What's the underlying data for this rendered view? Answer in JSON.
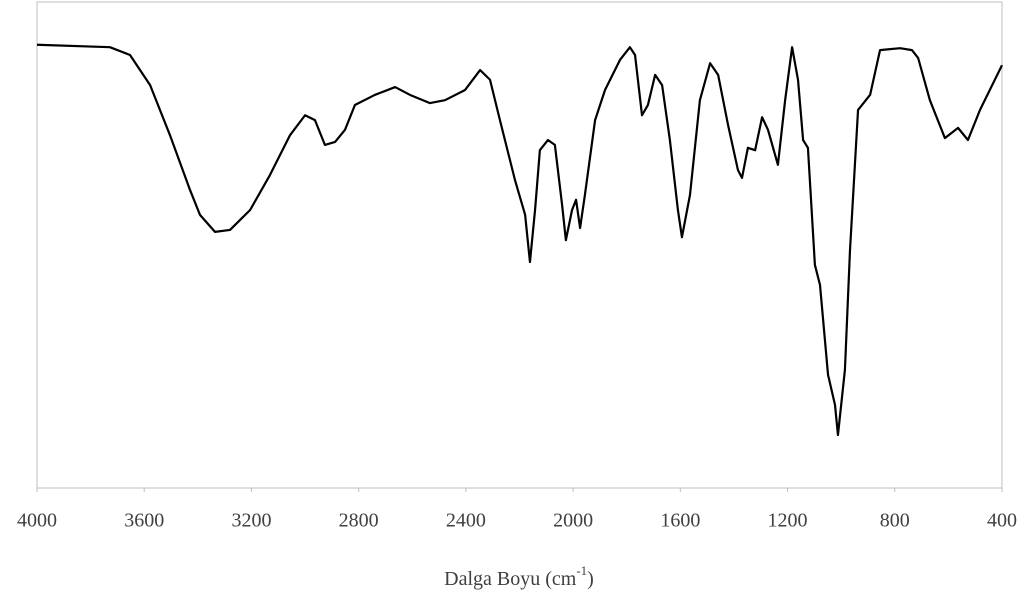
{
  "chart_data": {
    "type": "line",
    "xlabel": [
      "Dalga Boyu (cm",
      "-1",
      ")"
    ],
    "xlim": [
      4000,
      400
    ],
    "xticks": [
      4000,
      3600,
      3200,
      2800,
      2400,
      2000,
      1600,
      1200,
      800,
      400
    ],
    "ylim": [
      0,
      100
    ],
    "x": [
      4000,
      3728,
      3653,
      3578,
      3504,
      3429,
      3392,
      3336,
      3280,
      3205,
      3131,
      3056,
      3000,
      2963,
      2926,
      2888,
      2851,
      2814,
      2739,
      2664,
      2609,
      2534,
      2478,
      2403,
      2347,
      2310,
      2273,
      2217,
      2179,
      2161,
      2142,
      2124,
      2094,
      2068,
      2041,
      2027,
      2004,
      1989,
      1974,
      1956,
      1918,
      1881,
      1825,
      1788,
      1769,
      1743,
      1721,
      1694,
      1668,
      1639,
      1609,
      1594,
      1564,
      1527,
      1489,
      1459,
      1422,
      1385,
      1370,
      1348,
      1321,
      1295,
      1273,
      1236,
      1209,
      1183,
      1161,
      1142,
      1124,
      1098,
      1079,
      1049,
      1023,
      1012,
      986,
      967,
      937,
      892,
      855,
      780,
      736,
      713,
      669,
      613,
      564,
      527,
      482,
      400
    ],
    "series": [
      {
        "color": "#000000",
        "values": [
          91.2,
          90.7,
          89.1,
          82.9,
          72.6,
          61.3,
          56.2,
          52.7,
          53.1,
          57.2,
          64.4,
          72.6,
          76.7,
          75.7,
          70.6,
          71.2,
          73.7,
          78.8,
          80.9,
          82.5,
          80.9,
          79.2,
          79.8,
          81.9,
          86.0,
          84.0,
          75.7,
          63.4,
          56.2,
          46.5,
          57.2,
          69.5,
          71.6,
          70.6,
          58.2,
          51.0,
          57.2,
          59.3,
          53.5,
          60.3,
          75.7,
          81.9,
          88.1,
          90.7,
          89.1,
          76.7,
          78.8,
          85.0,
          82.9,
          71.6,
          57.2,
          51.6,
          60.3,
          79.8,
          87.4,
          85.0,
          74.7,
          65.4,
          63.8,
          70.0,
          69.5,
          76.3,
          73.7,
          66.5,
          79.8,
          90.7,
          84.0,
          71.6,
          70.0,
          45.9,
          41.8,
          23.3,
          17.1,
          10.9,
          24.3,
          49.0,
          77.8,
          80.9,
          90.1,
          90.5,
          90.1,
          88.5,
          79.8,
          72.0,
          74.1,
          71.6,
          77.8,
          87.0
        ]
      }
    ]
  }
}
